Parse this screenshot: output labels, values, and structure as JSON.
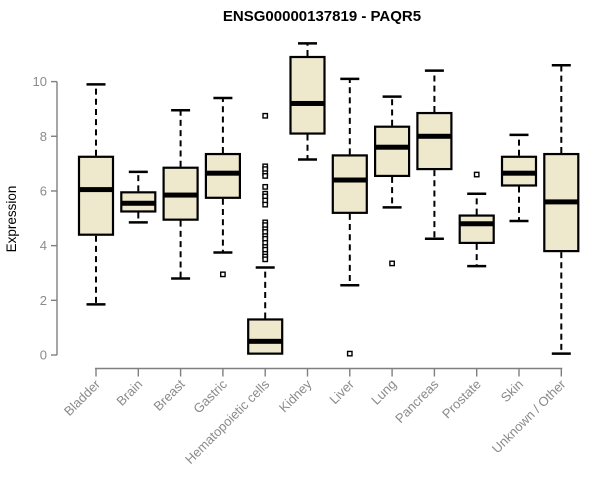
{
  "title": "ENSG00000137819 - PAQR5",
  "chart_data": {
    "type": "boxplot",
    "title": "ENSG00000137819 - PAQR5",
    "xlabel": "",
    "ylabel": "Expression",
    "yticks": [
      0,
      2,
      4,
      6,
      8,
      10
    ],
    "ylim": [
      0,
      11.5
    ],
    "grid": false,
    "legend": "none",
    "colors": {
      "box_fill": "#EEE8CD",
      "box_stroke": "#000000",
      "median": "#000000",
      "whisker": "#000000",
      "axis_line": "#7f7f7f",
      "axis_text": "#8a8a8a",
      "title_text": "#000000",
      "background": "#ffffff"
    },
    "categories": [
      "Bladder",
      "Brain",
      "Breast",
      "Gastric",
      "Hematopoietic cells",
      "Kidney",
      "Liver",
      "Lung",
      "Pancreas",
      "Prostate",
      "Skin",
      "Unknown / Other"
    ],
    "boxes": [
      {
        "label": "Bladder",
        "low": 1.85,
        "q1": 4.4,
        "median": 6.05,
        "q3": 7.25,
        "high": 9.9,
        "outliers": []
      },
      {
        "label": "Brain",
        "low": 4.85,
        "q1": 5.25,
        "median": 5.55,
        "q3": 5.95,
        "high": 6.7,
        "outliers": []
      },
      {
        "label": "Breast",
        "low": 2.8,
        "q1": 4.95,
        "median": 5.85,
        "q3": 6.85,
        "high": 8.95,
        "outliers": []
      },
      {
        "label": "Gastric",
        "low": 3.75,
        "q1": 5.75,
        "median": 6.65,
        "q3": 7.35,
        "high": 9.4,
        "outliers": [
          2.95
        ]
      },
      {
        "label": "Hematopoietic cells",
        "low": 0.05,
        "q1": 0.05,
        "median": 0.5,
        "q3": 1.3,
        "high": 3.2,
        "outliers": [
          8.75,
          6.9,
          6.8,
          6.65,
          6.55,
          6.15,
          5.9,
          5.8,
          5.65,
          5.5,
          4.85,
          4.75,
          4.6,
          4.5,
          4.35,
          4.25,
          4.1,
          3.95,
          3.85,
          3.7,
          3.6,
          3.5
        ]
      },
      {
        "label": "Kidney",
        "low": 7.15,
        "q1": 8.1,
        "median": 9.2,
        "q3": 10.9,
        "high": 11.4,
        "outliers": []
      },
      {
        "label": "Liver",
        "low": 2.55,
        "q1": 5.2,
        "median": 6.4,
        "q3": 7.3,
        "high": 10.1,
        "outliers": [
          0.05
        ]
      },
      {
        "label": "Lung",
        "low": 5.4,
        "q1": 6.55,
        "median": 7.6,
        "q3": 8.35,
        "high": 9.45,
        "outliers": [
          3.35
        ]
      },
      {
        "label": "Pancreas",
        "low": 4.25,
        "q1": 6.8,
        "median": 8.0,
        "q3": 8.85,
        "high": 10.4,
        "outliers": []
      },
      {
        "label": "Prostate",
        "low": 3.25,
        "q1": 4.1,
        "median": 4.8,
        "q3": 5.1,
        "high": 5.9,
        "outliers": [
          6.6
        ]
      },
      {
        "label": "Skin",
        "low": 4.9,
        "q1": 6.2,
        "median": 6.65,
        "q3": 7.25,
        "high": 8.05,
        "outliers": []
      },
      {
        "label": "Unknown / Other",
        "low": 0.05,
        "q1": 3.8,
        "median": 5.6,
        "q3": 7.35,
        "high": 10.6,
        "outliers": []
      }
    ]
  }
}
